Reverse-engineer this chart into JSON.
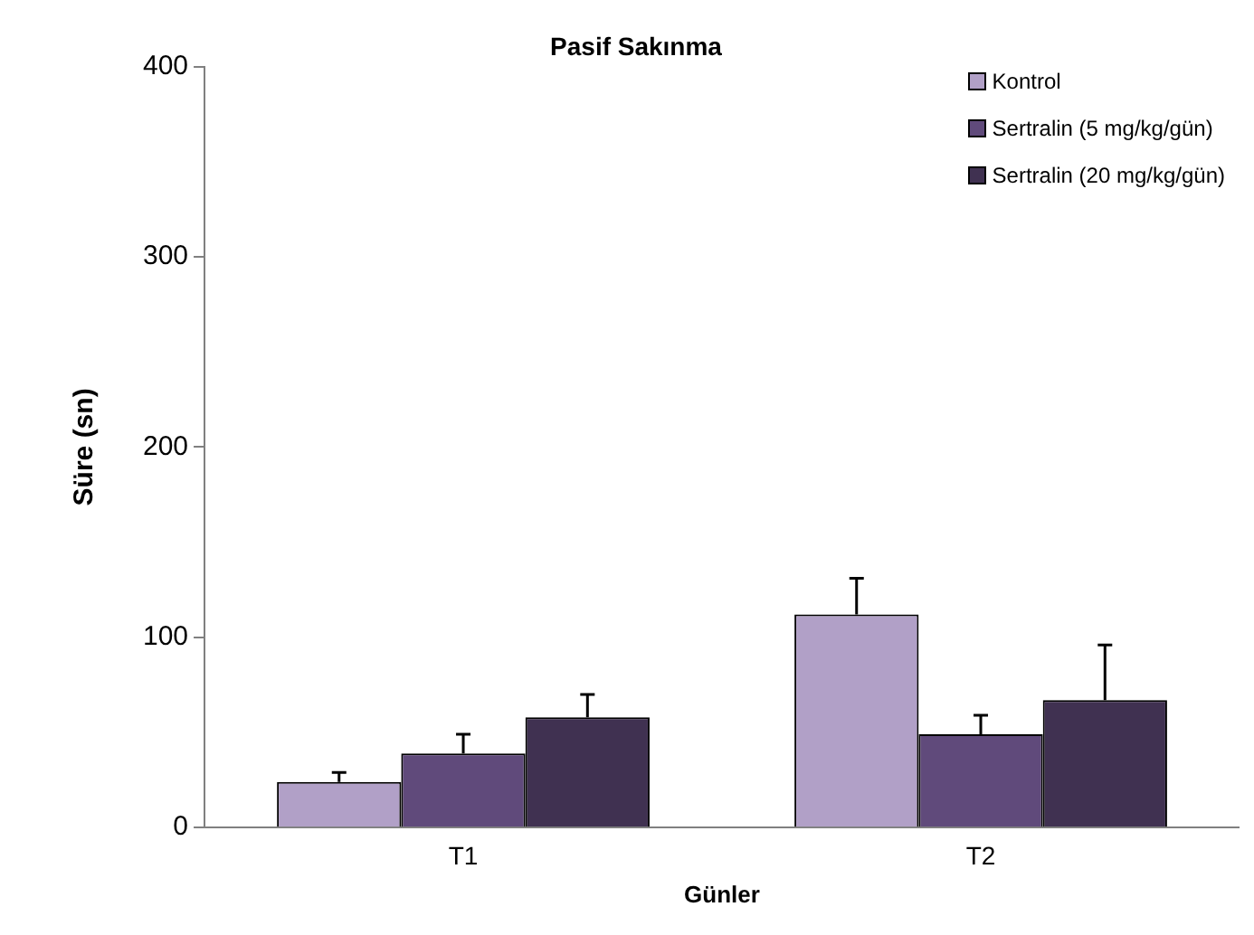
{
  "chart_data": {
    "type": "bar",
    "title": "Pasif Sakınma",
    "xlabel": "Günler",
    "ylabel": "Süre (sn)",
    "categories": [
      "T1",
      "T2"
    ],
    "series": [
      {
        "name": "Kontrol",
        "color": "#b1a0c7",
        "values": [
          24,
          112
        ],
        "errors": [
          5,
          19
        ]
      },
      {
        "name": "Sertralin (5 mg/kg/gün)",
        "color": "#604a7b",
        "values": [
          39,
          49
        ],
        "errors": [
          10,
          10
        ]
      },
      {
        "name": "Sertralin (20 mg/kg/gün)",
        "color": "#403151",
        "values": [
          58,
          67
        ],
        "errors": [
          12,
          29
        ]
      }
    ],
    "ylim": [
      0,
      400
    ],
    "yticks": [
      0,
      100,
      200,
      300,
      400
    ],
    "grid": false,
    "legend": "top right"
  }
}
